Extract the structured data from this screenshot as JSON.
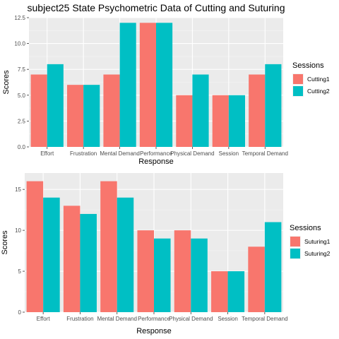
{
  "chart_data": [
    {
      "type": "bar",
      "title": "subject25 State Psychometric Data of Cutting and Suturing",
      "xlabel": "Response",
      "ylabel": "Scores",
      "ylim": [
        0,
        12.5
      ],
      "yticks": [
        "0.0",
        "2.5",
        "5.0",
        "7.5",
        "10.0",
        "12.5"
      ],
      "ytick_values": [
        0,
        2.5,
        5,
        7.5,
        10,
        12.5
      ],
      "categories": [
        "Effort",
        "Frustration",
        "Mental Demand",
        "Performance",
        "Physical Demand",
        "Session",
        "Temporal Demand"
      ],
      "legend_title": "Sessions",
      "series": [
        {
          "name": "Cutting1",
          "color": "#F8766D",
          "values": [
            7,
            6,
            7,
            12,
            5,
            5,
            7
          ]
        },
        {
          "name": "Cutting2",
          "color": "#00BFC4",
          "values": [
            8,
            6,
            12,
            12,
            7,
            5,
            8
          ]
        }
      ],
      "grid": true
    },
    {
      "type": "bar",
      "title": "",
      "xlabel": "Response",
      "ylabel": "Scores",
      "ylim": [
        0,
        17
      ],
      "yticks": [
        "0",
        "5",
        "10",
        "15"
      ],
      "ytick_values": [
        0,
        5,
        10,
        15
      ],
      "categories": [
        "Effort",
        "Frustration",
        "Mental Demand",
        "Performance",
        "Physical Demand",
        "Session",
        "Temporal Demand"
      ],
      "legend_title": "Sessions",
      "series": [
        {
          "name": "Suturing1",
          "color": "#F8766D",
          "values": [
            16,
            13,
            16,
            10,
            10,
            5,
            8
          ]
        },
        {
          "name": "Suturing2",
          "color": "#00BFC4",
          "values": [
            14,
            12,
            14,
            9,
            9,
            5,
            11
          ]
        }
      ],
      "grid": true
    }
  ]
}
